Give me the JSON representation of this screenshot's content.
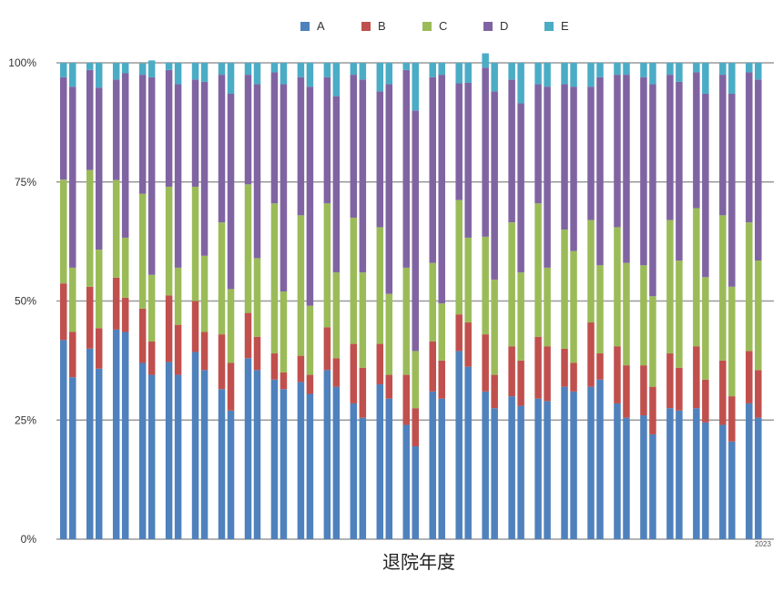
{
  "chart_data": {
    "type": "bar",
    "stacked": true,
    "percent_stacked": true,
    "xlabel": "退院年度",
    "corner_label": "2023",
    "yticks": [
      "0%",
      "25%",
      "50%",
      "75%",
      "100%"
    ],
    "ylim": [
      0,
      100
    ],
    "grid": true,
    "legend_position": "top",
    "series": [
      {
        "name": "A",
        "color": "#4f81bd",
        "values": [
          41.8,
          34.0,
          40.0,
          35.8,
          44.0,
          43.5,
          37.0,
          34.5,
          37.2,
          34.5,
          39.3,
          35.5,
          31.5,
          27.0,
          38.0,
          35.5,
          33.5,
          31.5,
          33.0,
          30.5,
          35.5,
          32.0,
          28.5,
          25.5,
          32.5,
          29.5,
          24.0,
          19.5,
          31.0,
          29.5,
          39.5,
          36.2,
          31.0,
          27.5,
          30.0,
          28.0,
          29.5,
          29.0,
          32.0,
          31.0,
          32.0,
          33.5,
          28.5,
          25.5,
          26.0,
          22.0,
          27.5,
          27.0,
          27.5,
          24.5,
          24.0,
          20.5,
          28.5,
          25.5
        ]
      },
      {
        "name": "B",
        "color": "#c0504d",
        "values": [
          11.9,
          9.5,
          13.0,
          8.5,
          10.9,
          7.2,
          11.4,
          7.0,
          14.0,
          10.5,
          10.7,
          8.0,
          11.5,
          10.0,
          9.5,
          7.0,
          5.5,
          3.5,
          5.5,
          4.0,
          9.0,
          6.0,
          12.5,
          10.5,
          8.5,
          5.0,
          10.5,
          8.0,
          10.5,
          8.0,
          7.7,
          9.3,
          12.0,
          7.0,
          10.5,
          9.5,
          13.0,
          11.5,
          8.0,
          6.0,
          13.5,
          5.5,
          12.0,
          11.0,
          10.5,
          10.0,
          11.5,
          9.0,
          13.0,
          9.0,
          13.5,
          9.5,
          11.0,
          10.0
        ]
      },
      {
        "name": "C",
        "color": "#9bbb59",
        "values": [
          21.8,
          13.5,
          24.5,
          16.5,
          20.5,
          12.6,
          24.1,
          14.0,
          22.8,
          12.0,
          24.0,
          16.0,
          23.5,
          15.5,
          27.0,
          16.5,
          31.5,
          17.0,
          29.5,
          14.5,
          26.0,
          18.0,
          26.5,
          20.0,
          24.5,
          17.0,
          22.5,
          12.0,
          16.5,
          12.0,
          24.0,
          17.8,
          20.5,
          20.0,
          26.0,
          18.5,
          28.0,
          16.5,
          25.0,
          23.5,
          21.5,
          18.5,
          25.0,
          21.5,
          21.0,
          19.0,
          28.0,
          22.5,
          29.0,
          21.5,
          30.5,
          23.0,
          27.0,
          23.0
        ]
      },
      {
        "name": "D",
        "color": "#8064a2",
        "values": [
          21.5,
          38.0,
          21.0,
          34.0,
          21.1,
          34.5,
          25.0,
          41.5,
          24.5,
          38.5,
          22.5,
          36.5,
          31.0,
          41.0,
          23.0,
          36.5,
          27.5,
          43.5,
          29.0,
          46.0,
          26.5,
          37.0,
          30.0,
          40.5,
          28.5,
          44.0,
          41.5,
          50.5,
          39.0,
          48.0,
          24.5,
          32.5,
          35.5,
          39.5,
          30.0,
          35.5,
          25.0,
          38.0,
          30.5,
          34.5,
          28.0,
          39.5,
          32.0,
          39.5,
          39.5,
          44.5,
          30.5,
          37.5,
          28.5,
          38.5,
          29.5,
          40.5,
          31.5,
          38.0
        ]
      },
      {
        "name": "E",
        "color": "#4bacc6",
        "values": [
          3.0,
          5.0,
          1.5,
          5.2,
          3.5,
          2.2,
          2.4,
          3.5,
          1.5,
          4.5,
          3.5,
          4.0,
          2.5,
          6.5,
          2.5,
          4.5,
          2.0,
          4.5,
          3.0,
          5.0,
          3.0,
          7.0,
          2.5,
          3.5,
          6.0,
          4.5,
          1.5,
          10.0,
          3.0,
          2.5,
          4.3,
          4.2,
          3.0,
          6.0,
          3.5,
          8.5,
          4.5,
          5.0,
          4.5,
          5.0,
          5.0,
          3.0,
          2.5,
          2.5,
          3.0,
          4.5,
          2.5,
          4.0,
          2.0,
          6.5,
          2.5,
          6.5,
          2.0,
          3.5
        ]
      }
    ]
  }
}
